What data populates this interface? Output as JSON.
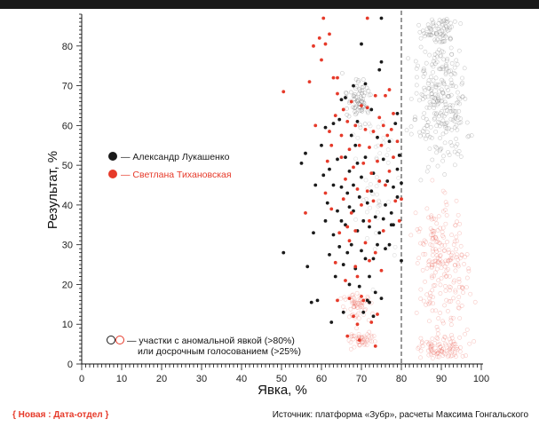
{
  "chart_data": {
    "type": "scatter",
    "title": "",
    "xlabel": "Явка, %",
    "ylabel": "Результат, %",
    "xlim": [
      0,
      100
    ],
    "ylim": [
      0,
      88
    ],
    "xticks": [
      0,
      10,
      20,
      30,
      40,
      50,
      60,
      70,
      80,
      90,
      100
    ],
    "yticks": [
      0,
      10,
      20,
      30,
      40,
      50,
      60,
      70,
      80
    ],
    "threshold_x": 80,
    "legend_placement": "left",
    "legend": [
      {
        "label": "— Александр Лукашенко",
        "color": "#1a1a1a"
      },
      {
        "label": "— Светлана Тихановская",
        "color": "#e63a2a"
      }
    ],
    "anomaly_note": [
      "— участки с аномальной явкой (>80%)",
      "или досрочным голосованием (>25%)"
    ],
    "series": [
      {
        "name": "Александр Лукашенко",
        "color": "#1a1a1a",
        "points": [
          [
            50.5,
            28.0
          ],
          [
            55.0,
            50.5
          ],
          [
            56.0,
            53.0
          ],
          [
            56.5,
            24.5
          ],
          [
            57.5,
            15.5
          ],
          [
            58.0,
            33.0
          ],
          [
            59.0,
            16.0
          ],
          [
            60.0,
            55.0
          ],
          [
            60.5,
            47.5
          ],
          [
            61.0,
            59.5
          ],
          [
            61.5,
            40.5
          ],
          [
            62.0,
            49.0
          ],
          [
            62.5,
            10.5
          ],
          [
            63.0,
            32.5
          ],
          [
            63.0,
            60.5
          ],
          [
            63.5,
            22.0
          ],
          [
            64.0,
            38.5
          ],
          [
            64.0,
            51.5
          ],
          [
            64.5,
            29.5
          ],
          [
            65.0,
            44.5
          ],
          [
            65.0,
            66.5
          ],
          [
            65.5,
            13.0
          ],
          [
            65.5,
            25.0
          ],
          [
            66.0,
            35.0
          ],
          [
            66.0,
            52.0
          ],
          [
            66.5,
            43.0
          ],
          [
            67.0,
            20.0
          ],
          [
            67.0,
            48.5
          ],
          [
            67.5,
            30.0
          ],
          [
            67.5,
            57.5
          ],
          [
            68.0,
            38.5
          ],
          [
            68.0,
            45.0
          ],
          [
            68.5,
            24.0
          ],
          [
            68.5,
            55.0
          ],
          [
            69.0,
            33.5
          ],
          [
            69.0,
            50.5
          ],
          [
            69.5,
            19.5
          ],
          [
            69.5,
            42.0
          ],
          [
            70.0,
            28.5
          ],
          [
            70.0,
            47.0
          ],
          [
            70.0,
            80.5
          ],
          [
            70.5,
            13.0
          ],
          [
            70.5,
            36.0
          ],
          [
            71.0,
            26.5
          ],
          [
            71.0,
            52.0
          ],
          [
            71.5,
            16.0
          ],
          [
            71.5,
            40.5
          ],
          [
            72.0,
            22.0
          ],
          [
            72.0,
            34.5
          ],
          [
            72.5,
            43.5
          ],
          [
            72.5,
            64.0
          ],
          [
            73.0,
            26.5
          ],
          [
            73.0,
            48.0
          ],
          [
            73.5,
            18.0
          ],
          [
            73.5,
            37.0
          ],
          [
            74.0,
            30.0
          ],
          [
            74.0,
            57.0
          ],
          [
            74.5,
            33.0
          ],
          [
            75.0,
            76.0
          ],
          [
            75.0,
            87.0
          ],
          [
            75.5,
            36.5
          ],
          [
            75.5,
            51.5
          ],
          [
            76.0,
            40.0
          ],
          [
            76.5,
            46.0
          ],
          [
            77.0,
            30.0
          ],
          [
            77.0,
            56.0
          ],
          [
            77.5,
            38.0
          ],
          [
            78.0,
            44.5
          ],
          [
            78.5,
            60.5
          ],
          [
            79.0,
            42.0
          ],
          [
            79.0,
            63.0
          ],
          [
            79.5,
            52.5
          ],
          [
            80.0,
            26.0
          ],
          [
            80.0,
            45.5
          ],
          [
            66.0,
            67.0
          ],
          [
            72.0,
            15.5
          ],
          [
            74.5,
            74.0
          ],
          [
            61.0,
            36.0
          ],
          [
            64.5,
            61.5
          ],
          [
            69.0,
            61.0
          ],
          [
            75.0,
            16.5
          ],
          [
            77.5,
            35.0
          ],
          [
            58.5,
            45.0
          ],
          [
            63.0,
            45.0
          ],
          [
            68.0,
            70.0
          ],
          [
            71.0,
            70.5
          ],
          [
            65.0,
            36.0
          ],
          [
            67.0,
            39.5
          ],
          [
            62.0,
            27.5
          ],
          [
            66.5,
            28.0
          ],
          [
            73.0,
            12.0
          ],
          [
            76.0,
            29.0
          ],
          [
            78.0,
            35.0
          ],
          [
            79.0,
            49.0
          ]
        ]
      },
      {
        "name": "Светлана Тихановская",
        "color": "#e63a2a",
        "points": [
          [
            50.5,
            68.5
          ],
          [
            56.0,
            38.0
          ],
          [
            57.0,
            71.0
          ],
          [
            58.0,
            80.0
          ],
          [
            58.5,
            60.0
          ],
          [
            59.5,
            82.0
          ],
          [
            60.0,
            76.5
          ],
          [
            60.5,
            87.0
          ],
          [
            61.0,
            80.5
          ],
          [
            61.0,
            43.0
          ],
          [
            62.0,
            83.0
          ],
          [
            62.0,
            58.5
          ],
          [
            62.5,
            55.0
          ],
          [
            63.0,
            72.0
          ],
          [
            63.5,
            62.5
          ],
          [
            64.0,
            68.0
          ],
          [
            64.0,
            16.0
          ],
          [
            64.5,
            33.0
          ],
          [
            65.0,
            57.5
          ],
          [
            65.5,
            64.0
          ],
          [
            65.5,
            41.5
          ],
          [
            66.0,
            21.0
          ],
          [
            66.0,
            46.5
          ],
          [
            66.5,
            61.0
          ],
          [
            66.5,
            7.0
          ],
          [
            67.0,
            54.0
          ],
          [
            67.0,
            16.5
          ],
          [
            67.5,
            66.0
          ],
          [
            67.5,
            38.0
          ],
          [
            68.0,
            49.5
          ],
          [
            68.0,
            12.0
          ],
          [
            68.5,
            60.0
          ],
          [
            68.5,
            33.5
          ],
          [
            69.0,
            44.0
          ],
          [
            69.0,
            22.0
          ],
          [
            69.5,
            55.0
          ],
          [
            69.5,
            6.0
          ],
          [
            70.0,
            65.0
          ],
          [
            70.0,
            40.0
          ],
          [
            70.5,
            50.5
          ],
          [
            70.5,
            16.0
          ],
          [
            71.0,
            59.0
          ],
          [
            71.0,
            30.5
          ],
          [
            71.5,
            64.5
          ],
          [
            71.5,
            43.5
          ],
          [
            72.0,
            54.5
          ],
          [
            72.0,
            36.0
          ],
          [
            72.5,
            48.0
          ],
          [
            72.5,
            10.5
          ],
          [
            73.0,
            58.5
          ],
          [
            73.0,
            41.0
          ],
          [
            73.5,
            67.5
          ],
          [
            73.5,
            28.0
          ],
          [
            74.0,
            51.0
          ],
          [
            74.0,
            12.5
          ],
          [
            74.5,
            62.0
          ],
          [
            74.5,
            46.0
          ],
          [
            75.0,
            55.0
          ],
          [
            75.0,
            23.5
          ],
          [
            75.5,
            60.0
          ],
          [
            76.0,
            67.5
          ],
          [
            76.0,
            45.0
          ],
          [
            76.5,
            57.5
          ],
          [
            77.0,
            69.0
          ],
          [
            77.0,
            48.5
          ],
          [
            77.5,
            59.0
          ],
          [
            78.0,
            52.0
          ],
          [
            78.0,
            63.0
          ],
          [
            78.5,
            41.0
          ],
          [
            79.0,
            56.0
          ],
          [
            79.5,
            36.0
          ],
          [
            80.0,
            41.5
          ],
          [
            71.5,
            87.0
          ],
          [
            64.0,
            72.0
          ],
          [
            65.0,
            52.0
          ],
          [
            68.5,
            24.5
          ],
          [
            73.5,
            4.5
          ],
          [
            70.0,
            17.0
          ],
          [
            66.5,
            34.5
          ],
          [
            69.0,
            10.0
          ],
          [
            72.0,
            26.0
          ],
          [
            75.5,
            33.5
          ],
          [
            63.5,
            25.5
          ],
          [
            67.0,
            31.0
          ],
          [
            61.5,
            51.0
          ],
          [
            62.5,
            39.0
          ]
        ]
      }
    ]
  },
  "footer": {
    "brand": "{ Новая : Дата-отдел }",
    "source": "Источник: платформа «Зубр», расчеты Максима Гонгальского"
  }
}
